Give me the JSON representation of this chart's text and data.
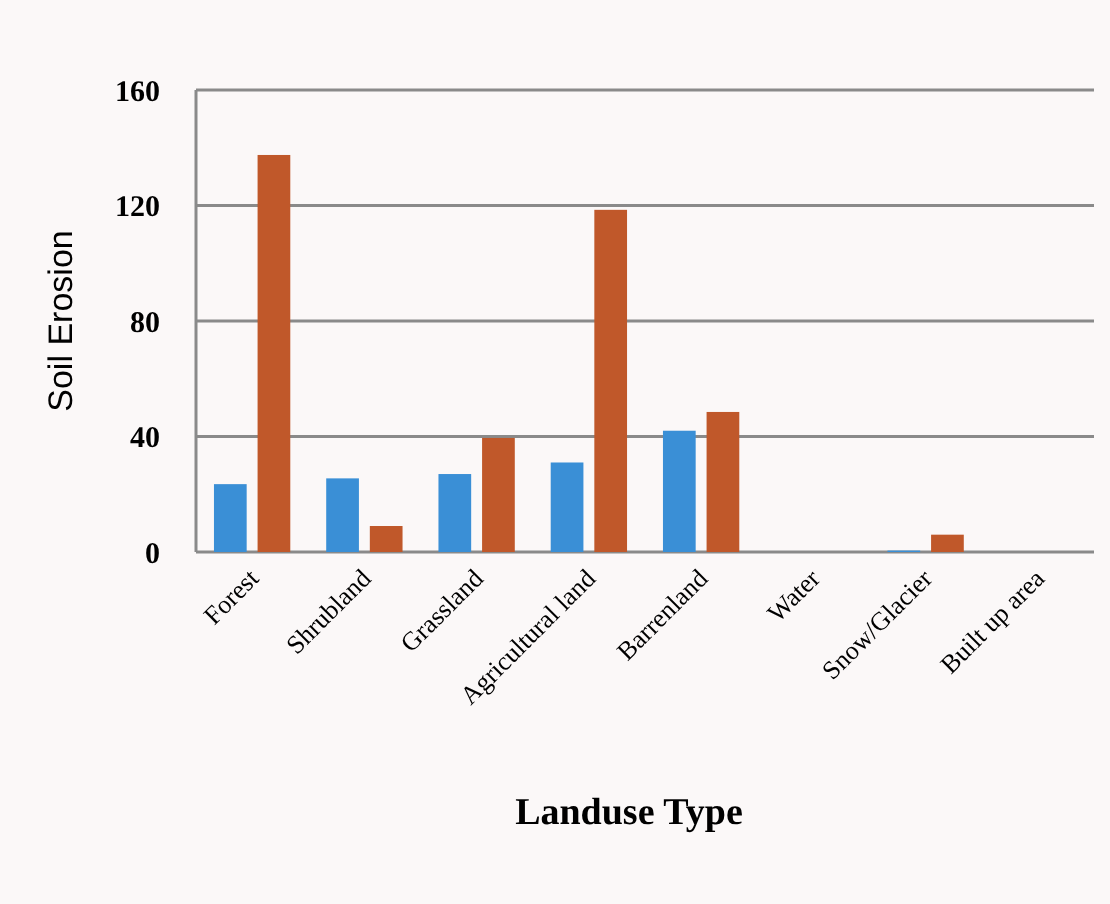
{
  "chart_data": {
    "type": "bar",
    "xlabel": "Landuse Type",
    "ylabel": "Soil Erosion",
    "categories": [
      "Forest",
      "Shrubland",
      "Grassland",
      "Agricultural land",
      "Barrenland",
      "Water",
      "Snow/Glacier",
      "Built up area"
    ],
    "series": [
      {
        "color": "#3a8fd6",
        "values": [
          23.5,
          25.5,
          27,
          31,
          42,
          0,
          0.5,
          0
        ]
      },
      {
        "color": "#c0582a",
        "values": [
          137.5,
          9,
          39.5,
          118.5,
          48.5,
          0,
          6,
          0
        ]
      }
    ],
    "ylim": [
      0,
      160
    ],
    "yticks": [
      0,
      40,
      80,
      120,
      160
    ],
    "grid": "y"
  }
}
